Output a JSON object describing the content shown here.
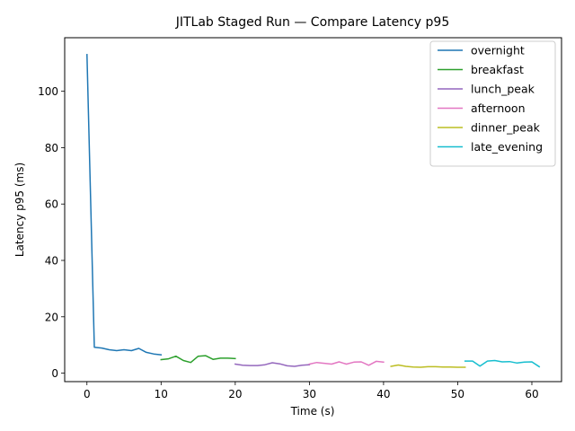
{
  "chart_data": {
    "type": "line",
    "title": "JITLab Staged Run — Compare Latency p95",
    "xlabel": "Time (s)",
    "ylabel": "Latency p95 (ms)",
    "xlim": [
      -3,
      64
    ],
    "ylim": [
      -3,
      119
    ],
    "xticks": [
      0,
      10,
      20,
      30,
      40,
      50,
      60
    ],
    "yticks": [
      0,
      20,
      40,
      60,
      80,
      100
    ],
    "grid": false,
    "legend_position": "top-right",
    "series": [
      {
        "name": "overnight",
        "color": "#1f77b4",
        "x": [
          0,
          1,
          2,
          3,
          4,
          5,
          6,
          7,
          8,
          9,
          10
        ],
        "y": [
          113,
          9.2,
          8.9,
          8.3,
          8.0,
          8.3,
          8.0,
          8.8,
          7.4,
          6.8,
          6.5
        ]
      },
      {
        "name": "breakfast",
        "color": "#2ca02c",
        "x": [
          10,
          11,
          12,
          13,
          14,
          15,
          16,
          17,
          18,
          19,
          20
        ],
        "y": [
          4.8,
          5.1,
          6.0,
          4.5,
          3.8,
          6.0,
          6.2,
          4.9,
          5.3,
          5.3,
          5.2
        ]
      },
      {
        "name": "lunch_peak",
        "color": "#9467bd",
        "x": [
          20,
          21,
          22,
          23,
          24,
          25,
          26,
          27,
          28,
          29,
          30
        ],
        "y": [
          3.2,
          2.8,
          2.7,
          2.7,
          3.0,
          3.7,
          3.3,
          2.6,
          2.4,
          2.8,
          3.0
        ]
      },
      {
        "name": "afternoon",
        "color": "#e377c2",
        "x": [
          30,
          31,
          32,
          33,
          34,
          35,
          36,
          37,
          38,
          39,
          40
        ],
        "y": [
          3.2,
          3.8,
          3.5,
          3.2,
          4.0,
          3.2,
          3.9,
          4.0,
          2.8,
          4.2,
          3.9
        ]
      },
      {
        "name": "dinner_peak",
        "color": "#bcbd22",
        "x": [
          41,
          42,
          43,
          44,
          45,
          46,
          47,
          48,
          49,
          50,
          51
        ],
        "y": [
          2.4,
          2.9,
          2.4,
          2.2,
          2.1,
          2.3,
          2.3,
          2.2,
          2.2,
          2.1,
          2.1
        ]
      },
      {
        "name": "late_evening",
        "color": "#17becf",
        "x": [
          51,
          52,
          53,
          54,
          55,
          56,
          57,
          58,
          59,
          60,
          61
        ],
        "y": [
          4.3,
          4.3,
          2.5,
          4.3,
          4.5,
          4.0,
          4.1,
          3.6,
          3.9,
          4.0,
          2.3
        ]
      }
    ]
  }
}
